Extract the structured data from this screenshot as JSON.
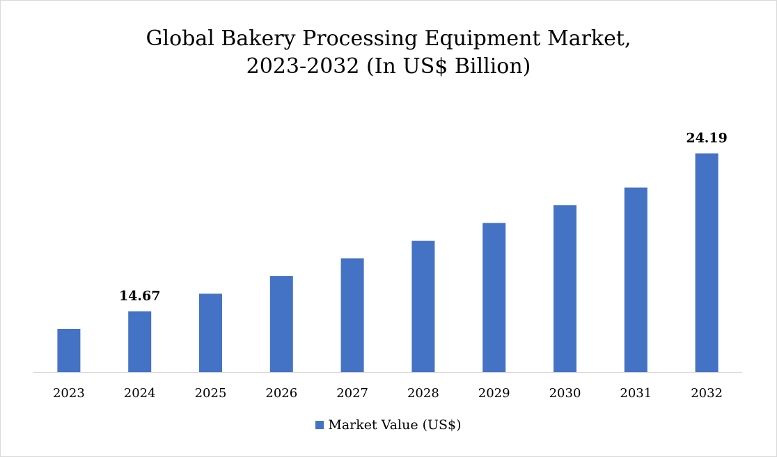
{
  "chart_data": {
    "type": "bar",
    "title_lines": [
      "Global Bakery Processing Equipment Market,",
      "2023-2032 (In US$ Billion)"
    ],
    "categories": [
      "2023",
      "2024",
      "2025",
      "2026",
      "2027",
      "2028",
      "2029",
      "2030",
      "2031",
      "2032"
    ],
    "series": [
      {
        "name": "Market Value (US$)",
        "values": [
          13.6,
          14.67,
          15.73,
          16.79,
          17.86,
          18.92,
          19.99,
          21.06,
          22.13,
          24.19
        ],
        "color": "#4472c4"
      }
    ],
    "data_labels": {
      "2024": "14.67",
      "2032": "24.19"
    },
    "xlabel": "",
    "ylabel": "",
    "ylim": [
      11,
      25.3
    ],
    "grid": false,
    "legend_position": "bottom"
  }
}
